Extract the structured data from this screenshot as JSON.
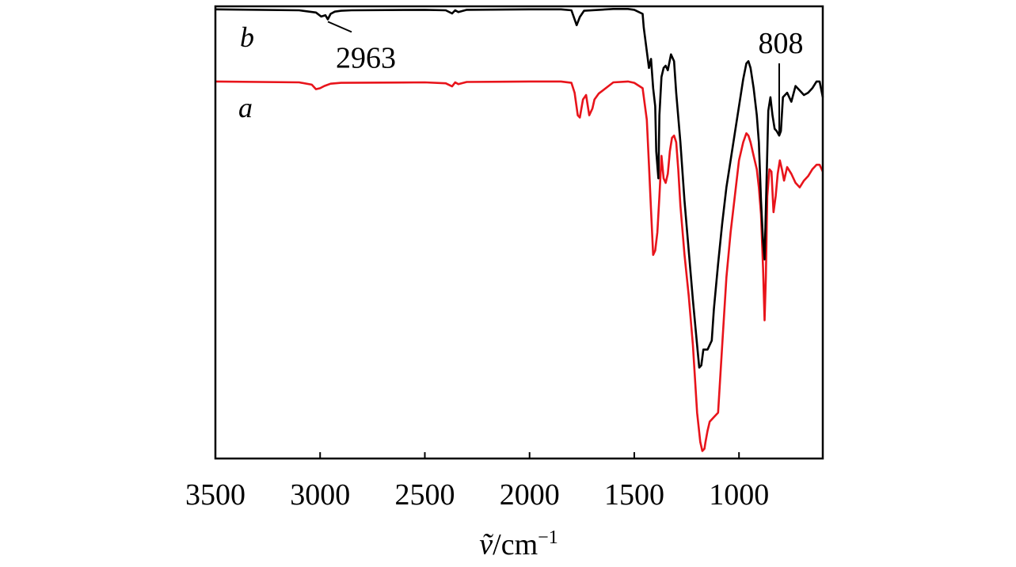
{
  "chart_data": {
    "type": "line",
    "title": "",
    "xlabel": "ṽ/cm⁻¹",
    "xlabel_symbol": "ṽ",
    "xlabel_unit": "/cm",
    "xlabel_exp": "−1",
    "ylabel": "",
    "x_reversed": true,
    "xlim": [
      3500,
      600
    ],
    "ylim": [
      0,
      100
    ],
    "grid": false,
    "xticks": [
      3500,
      3000,
      2500,
      2000,
      1500,
      1000
    ],
    "xtick_labels": [
      "3500",
      "3000",
      "2500",
      "2000",
      "1500",
      "1000"
    ],
    "series": [
      {
        "name": "b",
        "label": "b",
        "color": "#000000",
        "x": [
          3500,
          3100,
          3020,
          2995,
          2975,
          2963,
          2950,
          2930,
          2900,
          2850,
          2500,
          2400,
          2370,
          2355,
          2340,
          2300,
          2000,
          1850,
          1800,
          1775,
          1760,
          1740,
          1600,
          1530,
          1500,
          1460,
          1455,
          1440,
          1430,
          1420,
          1410,
          1400,
          1395,
          1385,
          1380,
          1370,
          1360,
          1350,
          1340,
          1325,
          1310,
          1300,
          1280,
          1260,
          1240,
          1220,
          1200,
          1190,
          1180,
          1170,
          1150,
          1130,
          1120,
          1100,
          1080,
          1060,
          1040,
          1020,
          1000,
          980,
          965,
          955,
          945,
          930,
          915,
          905,
          895,
          885,
          878,
          872,
          860,
          850,
          840,
          830,
          820,
          808,
          800,
          790,
          770,
          750,
          730,
          710,
          690,
          670,
          650,
          630,
          615,
          600
        ],
        "y": [
          99.5,
          99.3,
          98.8,
          97.9,
          98.2,
          97.3,
          98.5,
          99.0,
          99.2,
          99.3,
          99.4,
          99.3,
          98.6,
          99.3,
          98.9,
          99.4,
          99.5,
          99.5,
          99.3,
          96.0,
          97.8,
          99.2,
          99.6,
          99.6,
          99.4,
          98.5,
          95.5,
          90.2,
          86.5,
          88.5,
          82.0,
          78.0,
          68.0,
          62.0,
          76.0,
          84.5,
          86.5,
          87.0,
          86.0,
          89.5,
          88.0,
          81.0,
          70.0,
          57.0,
          46.0,
          35.0,
          25.0,
          20.0,
          20.5,
          24.0,
          24.0,
          26.0,
          33.0,
          43.0,
          52.0,
          60.0,
          66.0,
          72.0,
          78.0,
          84.0,
          87.5,
          88.0,
          86.5,
          82.0,
          76.0,
          70.0,
          57.0,
          48.0,
          44.0,
          55.0,
          77.0,
          80.0,
          76.0,
          73.0,
          72.5,
          71.5,
          72.5,
          80.0,
          81.0,
          79.0,
          82.5,
          81.5,
          80.5,
          81.0,
          82.0,
          83.5,
          83.5,
          80.0
        ]
      },
      {
        "name": "a",
        "label": "a",
        "color": "#e8141b",
        "x": [
          3500,
          3100,
          3040,
          3020,
          3000,
          2980,
          2950,
          2900,
          2500,
          2400,
          2370,
          2355,
          2340,
          2300,
          2000,
          1850,
          1800,
          1785,
          1770,
          1760,
          1745,
          1730,
          1715,
          1700,
          1690,
          1670,
          1600,
          1530,
          1500,
          1460,
          1440,
          1430,
          1420,
          1410,
          1400,
          1390,
          1380,
          1370,
          1360,
          1350,
          1340,
          1330,
          1320,
          1310,
          1300,
          1290,
          1280,
          1260,
          1240,
          1220,
          1200,
          1185,
          1175,
          1165,
          1160,
          1150,
          1140,
          1120,
          1100,
          1080,
          1060,
          1040,
          1020,
          1000,
          980,
          965,
          955,
          945,
          930,
          915,
          905,
          895,
          885,
          878,
          872,
          865,
          855,
          845,
          835,
          825,
          815,
          805,
          795,
          785,
          770,
          750,
          730,
          710,
          690,
          670,
          650,
          630,
          615,
          600
        ],
        "y": [
          83.5,
          83.3,
          82.8,
          81.8,
          82.0,
          82.5,
          83.0,
          83.2,
          83.3,
          83.1,
          82.4,
          83.3,
          82.9,
          83.4,
          83.5,
          83.5,
          83.2,
          81.0,
          76.0,
          75.5,
          79.5,
          80.5,
          76.0,
          77.5,
          79.5,
          80.8,
          83.3,
          83.5,
          83.2,
          82.0,
          75.0,
          65.0,
          55.0,
          45.0,
          46.0,
          50.0,
          58.0,
          67.0,
          62.0,
          61.0,
          63.0,
          68.0,
          71.0,
          71.5,
          70.0,
          64.0,
          56.0,
          45.0,
          36.0,
          25.0,
          10.0,
          3.5,
          1.5,
          2.0,
          3.5,
          6.0,
          8.0,
          9.0,
          10.0,
          25.0,
          40.0,
          50.0,
          58.0,
          66.0,
          70.0,
          72.0,
          71.5,
          70.0,
          67.0,
          64.0,
          60.0,
          54.0,
          42.0,
          30.5,
          40.0,
          58.0,
          64.0,
          63.5,
          54.5,
          58.0,
          63.0,
          66.0,
          64.0,
          61.5,
          64.5,
          63.0,
          61.0,
          60.0,
          61.5,
          62.5,
          64.0,
          65.0,
          65.0,
          63.5
        ]
      }
    ],
    "annotations": [
      {
        "text": "2963",
        "x": 2963,
        "series": "b"
      },
      {
        "text": "808",
        "x": 808,
        "series": "b"
      }
    ]
  }
}
